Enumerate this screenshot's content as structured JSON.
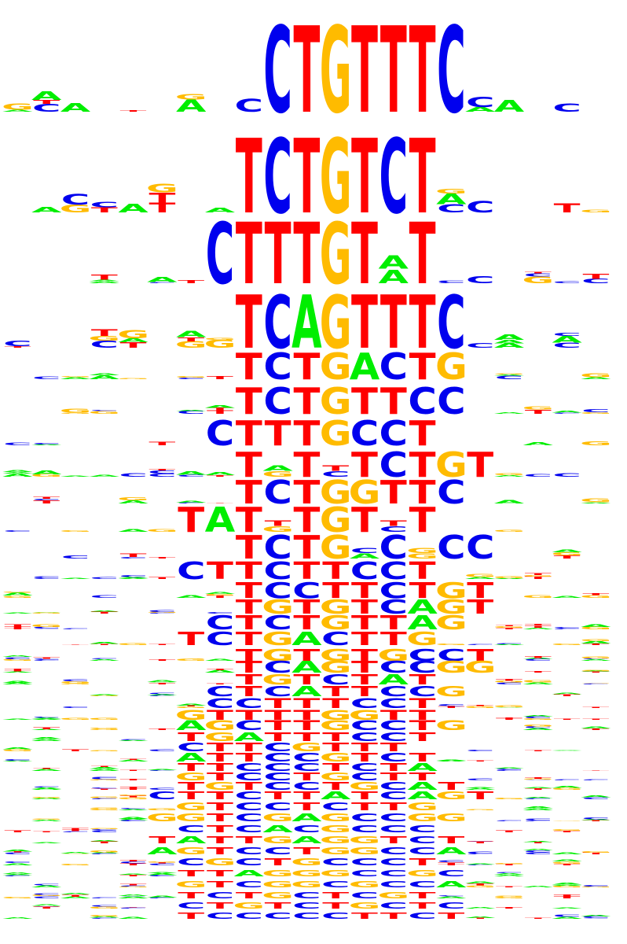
{
  "colors": {
    "A": "#00ee00",
    "C": "#0000ee",
    "G": "#ffbb00",
    "T": "#ff0000"
  },
  "chart_data": {
    "type": "sequence-logo-stack",
    "title": "",
    "xlabel": "",
    "ylabel": "",
    "motifs": [
      {
        "consensus": "CTGTTTC",
        "strength": 1.0
      },
      {
        "consensus": "TCTGTCT",
        "strength": 0.9
      },
      {
        "consensus": "CTTTGT?T",
        "strength": 0.65
      },
      {
        "consensus": "TCAGTTTC",
        "strength": 0.6
      },
      {
        "consensus": "TCTGACTG",
        "strength": 0.35
      },
      {
        "consensus": "TCTGTTCC",
        "strength": 0.35
      },
      {
        "consensus": "CTTTGCCT",
        "strength": 0.3
      },
      {
        "consensus": "T?T?TCTGT",
        "strength": 0.3
      },
      {
        "consensus": "TCTGGTTC",
        "strength": 0.3
      },
      {
        "consensus": "TAT?TGT?T",
        "strength": 0.28
      },
      {
        "consensus": "TCTG?C?CC",
        "strength": 0.28
      },
      {
        "consensus": "CTTCTTCCT",
        "strength": 0.22
      },
      {
        "consensus": "TCCTTCTGT",
        "strength": 0.2
      },
      {
        "consensus": "TGTGTCAGT",
        "strength": 0.2
      },
      {
        "consensus": "CTCTGTTAG",
        "strength": 0.18
      },
      {
        "consensus": "TCTGACTTG",
        "strength": 0.17
      },
      {
        "consensus": "TGTGTGCCT",
        "strength": 0.15
      },
      {
        "consensus": "TCAGTCCGG",
        "strength": 0.15
      },
      {
        "consensus": "TGTCTAT",
        "strength": 0.12
      },
      {
        "consensus": "CTCATTCCG",
        "strength": 0.12
      },
      {
        "consensus": "CCTTTCCT",
        "strength": 0.12
      },
      {
        "consensus": "GTTTTGGTT",
        "strength": 0.12
      },
      {
        "consensus": "AGCTTGCCTG",
        "strength": 0.12
      },
      {
        "consensus": "TGATTTCCT",
        "strength": 0.1
      },
      {
        "consensus": "CTTCGTTT",
        "strength": 0.1
      },
      {
        "consensus": "ATTCCGTCT",
        "strength": 0.1
      },
      {
        "consensus": "TTCCCTCTA",
        "strength": 0.1
      },
      {
        "consensus": "GTCCTGCTT",
        "strength": 0.1
      },
      {
        "consensus": "TGTCCTGCAT",
        "strength": 0.08
      },
      {
        "consensus": "CTTCTTATCAGT",
        "strength": 0.08
      },
      {
        "consensus": "GTCCTCTTG",
        "strength": 0.08
      },
      {
        "consensus": "GGTCGAGCCGG",
        "strength": 0.08
      },
      {
        "consensus": "CTCACGCCC",
        "strength": 0.07
      },
      {
        "consensus": "TATTGAGGTCT",
        "strength": 0.07
      },
      {
        "consensus": "AGTCCTGGCCA",
        "strength": 0.07
      },
      {
        "consensus": "CGCTGCCCT",
        "strength": 0.06
      },
      {
        "consensus": "TTAGGGCCGC",
        "strength": 0.06
      },
      {
        "consensus": "GTCGGCGCCA",
        "strength": 0.06
      },
      {
        "consensus": "TCTGCTCGT",
        "strength": 0.05
      },
      {
        "consensus": "CTGTCTGCTC",
        "strength": 0.05
      },
      {
        "consensus": "TCCCCCTTCT",
        "strength": 0.05
      }
    ]
  }
}
